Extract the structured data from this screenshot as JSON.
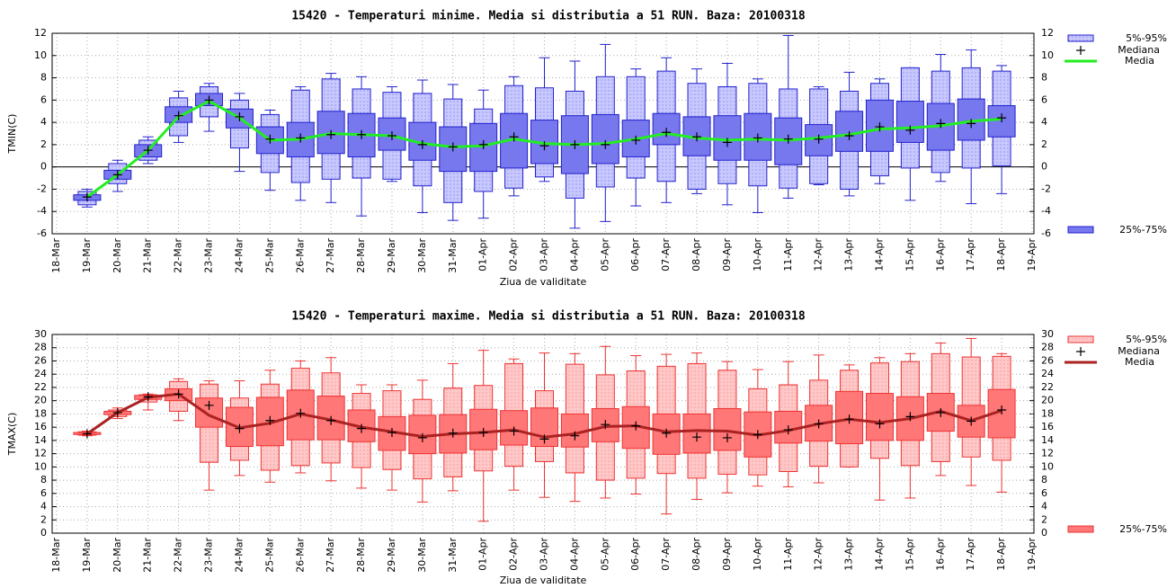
{
  "chart_data": [
    {
      "type": "box",
      "title": "15420 - Temperaturi minime. Media si distributia a 51 RUN. Baza: 20100318",
      "xlabel": "Ziua de validitate",
      "ylabel": "TMIN(C)",
      "categories": [
        "18-Mar",
        "19-Mar",
        "20-Mar",
        "21-Mar",
        "22-Mar",
        "23-Mar",
        "24-Mar",
        "25-Mar",
        "26-Mar",
        "27-Mar",
        "28-Mar",
        "29-Mar",
        "30-Mar",
        "31-Mar",
        "01-Apr",
        "02-Apr",
        "03-Apr",
        "04-Apr",
        "05-Apr",
        "06-Apr",
        "07-Apr",
        "08-Apr",
        "09-Apr",
        "10-Apr",
        "11-Apr",
        "12-Apr",
        "13-Apr",
        "14-Apr",
        "15-Apr",
        "16-Apr",
        "17-Apr",
        "18-Apr",
        "19-Apr"
      ],
      "stats": {
        "min": [
          null,
          -3.6,
          -2.2,
          0.3,
          2.2,
          3.2,
          -0.4,
          -2.1,
          -3.0,
          -3.2,
          -4.4,
          -1.3,
          -4.1,
          -4.8,
          -4.6,
          -2.6,
          -1.3,
          -5.5,
          -4.9,
          -3.5,
          -3.2,
          -2.4,
          -3.4,
          -4.1,
          -2.8,
          -1.6,
          -2.6,
          -1.5,
          -3.0,
          -1.3,
          -3.3,
          -2.4,
          null
        ],
        "p5": [
          null,
          -3.4,
          -1.5,
          0.6,
          2.8,
          4.5,
          1.7,
          -0.5,
          -1.4,
          -1.1,
          -1.0,
          -1.1,
          -1.7,
          -3.2,
          -2.2,
          -1.9,
          -0.9,
          -2.8,
          -1.8,
          -1.0,
          -1.3,
          -2.0,
          -1.5,
          -1.7,
          -1.9,
          -1.5,
          -2.0,
          -0.8,
          -0.1,
          -0.5,
          -0.1,
          0.1,
          null
        ],
        "p25": [
          null,
          -3.0,
          -1.1,
          0.9,
          4.0,
          5.5,
          3.5,
          1.2,
          0.9,
          1.2,
          0.9,
          1.5,
          0.6,
          -0.4,
          -0.4,
          -0.1,
          0.3,
          -0.6,
          0.3,
          0.9,
          2.0,
          1.0,
          0.6,
          0.6,
          0.2,
          1.0,
          1.4,
          1.4,
          2.2,
          1.5,
          2.4,
          2.7,
          null
        ],
        "median": [
          null,
          -2.7,
          -0.7,
          1.5,
          4.6,
          6.0,
          4.5,
          2.5,
          2.6,
          2.9,
          2.9,
          2.8,
          2.0,
          1.8,
          2.0,
          2.7,
          1.9,
          2.0,
          2.0,
          2.4,
          3.1,
          2.7,
          2.2,
          2.6,
          2.5,
          2.5,
          2.8,
          3.6,
          3.3,
          3.9,
          3.9,
          4.4,
          null
        ],
        "p75": [
          null,
          -2.5,
          -0.3,
          2.0,
          5.4,
          6.6,
          5.2,
          3.6,
          4.0,
          5.0,
          4.8,
          4.4,
          4.0,
          3.6,
          3.9,
          4.8,
          4.2,
          4.6,
          4.7,
          4.2,
          4.8,
          4.5,
          4.6,
          4.8,
          4.4,
          3.8,
          5.0,
          6.0,
          5.9,
          5.7,
          6.1,
          5.5,
          null
        ],
        "p95": [
          null,
          -2.2,
          0.3,
          2.4,
          6.2,
          7.2,
          6.0,
          4.7,
          6.9,
          7.9,
          7.0,
          6.7,
          6.6,
          6.1,
          5.2,
          7.3,
          7.1,
          6.8,
          8.1,
          8.1,
          8.6,
          7.5,
          7.2,
          7.5,
          7.0,
          7.0,
          6.8,
          7.5,
          8.9,
          8.6,
          8.9,
          8.6,
          null
        ],
        "max": [
          null,
          -2.0,
          0.6,
          2.7,
          6.8,
          7.5,
          6.6,
          5.1,
          7.2,
          8.4,
          8.1,
          7.2,
          7.8,
          7.4,
          6.9,
          8.1,
          9.8,
          9.5,
          11.0,
          8.8,
          9.8,
          8.8,
          9.3,
          7.9,
          11.8,
          7.2,
          8.5,
          7.9,
          8.9,
          10.1,
          10.5,
          9.1,
          null
        ],
        "mean": [
          null,
          -2.7,
          -0.7,
          1.5,
          4.5,
          5.9,
          4.4,
          2.4,
          2.5,
          3.0,
          2.9,
          2.8,
          2.1,
          1.8,
          1.9,
          2.5,
          2.1,
          2.0,
          2.1,
          2.5,
          3.0,
          2.6,
          2.4,
          2.5,
          2.4,
          2.6,
          2.9,
          3.4,
          3.5,
          3.7,
          4.1,
          4.3,
          null
        ]
      },
      "legend": {
        "outer": "5%-95%",
        "median": "Mediana",
        "mean": "Media",
        "inner": "25%-75%"
      },
      "colors": {
        "outer": "#c8c8ff",
        "inner": "#7777ee",
        "stroke": "#2222cc",
        "mean": "#22ee22"
      },
      "ylim": [
        -6,
        12
      ],
      "yticks": [
        -6,
        -4,
        -2,
        0,
        2,
        4,
        6,
        8,
        10,
        12
      ],
      "grid": true,
      "zeroaxis": true,
      "legend_position": "right"
    },
    {
      "type": "box",
      "title": "15420 - Temperaturi maxime. Media si distributia a 51 RUN. Baza: 20100318",
      "xlabel": "Ziua de validitate",
      "ylabel": "TMAX(C)",
      "categories": [
        "18-Mar",
        "19-Mar",
        "20-Mar",
        "21-Mar",
        "22-Mar",
        "23-Mar",
        "24-Mar",
        "25-Mar",
        "26-Mar",
        "27-Mar",
        "28-Mar",
        "29-Mar",
        "30-Mar",
        "31-Mar",
        "01-Apr",
        "02-Apr",
        "03-Apr",
        "04-Apr",
        "05-Apr",
        "06-Apr",
        "07-Apr",
        "08-Apr",
        "09-Apr",
        "10-Apr",
        "11-Apr",
        "12-Apr",
        "13-Apr",
        "14-Apr",
        "15-Apr",
        "16-Apr",
        "17-Apr",
        "18-Apr",
        "19-Apr"
      ],
      "stats": {
        "min": [
          null,
          14.7,
          17.3,
          18.6,
          17.0,
          6.5,
          8.7,
          7.7,
          9.1,
          7.9,
          6.8,
          6.5,
          4.7,
          6.4,
          1.8,
          6.5,
          5.4,
          4.8,
          5.3,
          5.9,
          2.9,
          5.1,
          6.1,
          7.1,
          7.0,
          7.6,
          10.0,
          5.0,
          5.3,
          8.7,
          7.2,
          6.2,
          null
        ],
        "p5": [
          null,
          14.8,
          17.6,
          19.8,
          18.4,
          10.7,
          11.0,
          9.5,
          10.2,
          10.6,
          9.9,
          9.6,
          8.2,
          8.5,
          9.4,
          10.1,
          10.8,
          9.1,
          8.0,
          8.3,
          9.0,
          8.3,
          8.9,
          8.8,
          9.3,
          10.1,
          10.0,
          11.3,
          10.2,
          10.8,
          11.5,
          11.0,
          null
        ],
        "p25": [
          null,
          14.9,
          17.9,
          20.2,
          20.0,
          16.0,
          13.1,
          13.2,
          14.1,
          14.1,
          13.8,
          12.5,
          12.0,
          12.1,
          12.6,
          13.3,
          13.1,
          13.0,
          13.8,
          12.8,
          11.9,
          12.1,
          12.5,
          11.5,
          13.6,
          13.9,
          13.5,
          14.0,
          14.0,
          15.4,
          14.5,
          14.4,
          null
        ],
        "median": [
          null,
          15.0,
          18.2,
          20.6,
          21.0,
          19.3,
          15.8,
          17.0,
          18.1,
          17.0,
          15.8,
          15.2,
          14.4,
          15.1,
          15.2,
          15.4,
          14.2,
          14.7,
          16.4,
          16.2,
          15.1,
          14.5,
          14.4,
          14.9,
          15.6,
          16.5,
          17.2,
          16.5,
          17.6,
          18.2,
          16.9,
          18.6,
          null
        ],
        "p75": [
          null,
          15.2,
          18.4,
          20.8,
          21.8,
          20.4,
          19.0,
          20.5,
          21.6,
          20.7,
          18.6,
          17.6,
          17.8,
          17.9,
          18.7,
          18.5,
          18.9,
          18.0,
          18.8,
          19.1,
          18.0,
          18.0,
          18.8,
          18.3,
          18.4,
          19.3,
          21.4,
          21.1,
          20.6,
          21.1,
          19.3,
          21.7,
          null
        ],
        "p95": [
          null,
          15.3,
          18.6,
          20.9,
          22.9,
          22.5,
          20.4,
          22.5,
          24.9,
          24.2,
          21.1,
          21.5,
          20.2,
          21.9,
          22.3,
          25.6,
          21.5,
          25.5,
          23.9,
          24.5,
          25.2,
          25.6,
          24.6,
          21.8,
          22.4,
          23.1,
          24.6,
          25.7,
          25.9,
          27.1,
          26.6,
          26.7,
          null
        ],
        "max": [
          null,
          15.4,
          18.9,
          21.0,
          23.3,
          23.0,
          23.0,
          24.6,
          26.0,
          26.5,
          22.4,
          22.4,
          23.1,
          25.6,
          27.6,
          26.3,
          27.2,
          27.1,
          28.2,
          26.8,
          27.0,
          27.2,
          25.9,
          24.7,
          25.9,
          26.9,
          25.4,
          26.5,
          27.1,
          28.7,
          29.4,
          27.1,
          null
        ],
        "mean": [
          null,
          15.0,
          18.2,
          20.5,
          21.0,
          17.8,
          15.9,
          16.6,
          18.0,
          17.1,
          16.0,
          15.3,
          14.6,
          15.0,
          15.2,
          15.6,
          14.5,
          15.0,
          16.1,
          16.2,
          15.3,
          15.5,
          15.4,
          14.8,
          15.5,
          16.5,
          17.2,
          16.7,
          17.3,
          18.4,
          17.0,
          18.5,
          null
        ]
      },
      "legend": {
        "outer": "5%-95%",
        "median": "Mediana",
        "mean": "Media",
        "inner": "25%-75%"
      },
      "colors": {
        "outer": "#ffc8c8",
        "inner": "#ff7777",
        "stroke": "#ee3333",
        "mean": "#aa2222"
      },
      "ylim": [
        0,
        30
      ],
      "yticks": [
        0,
        2,
        4,
        6,
        8,
        10,
        12,
        14,
        16,
        18,
        20,
        22,
        24,
        26,
        28,
        30
      ],
      "grid": true,
      "zeroaxis": false,
      "legend_position": "right"
    }
  ]
}
